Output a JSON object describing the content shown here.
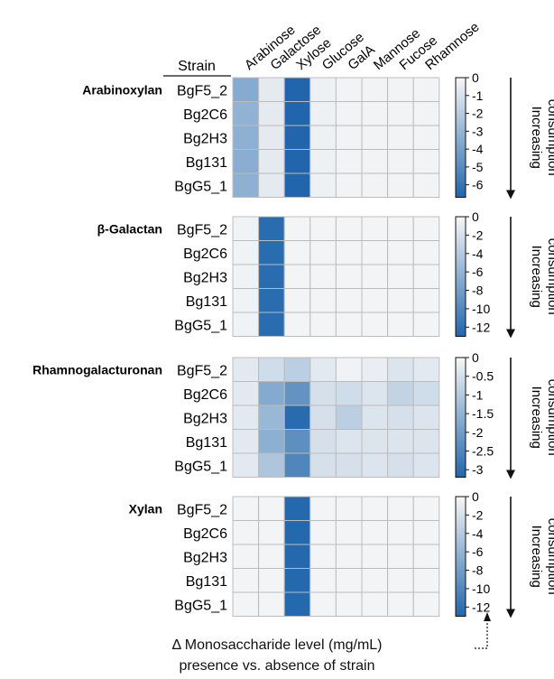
{
  "chart_data": {
    "type": "heatmap",
    "columns": [
      "Arabinose",
      "Galactose",
      "Xylose",
      "Glucose",
      "GalA",
      "Mannose",
      "Fucose",
      "Rhamnose"
    ],
    "row_header": "Strain",
    "rows": [
      "BgF5_2",
      "Bg2C6",
      "Bg2H3",
      "Bg131",
      "BgG5_1"
    ],
    "colors": {
      "low": "#2166ac",
      "high": "#f7f7f7",
      "cell_border": "#bcbcbc"
    },
    "colorbar_note": "Increasing consumption",
    "panels": [
      {
        "label": "Arabinoxylan",
        "cbar_ticks": [
          "0",
          "-1",
          "-2",
          "-3",
          "-4",
          "-5",
          "-6"
        ],
        "cbar_tick_values": [
          0,
          -1,
          -2,
          -3,
          -4,
          -5,
          -6
        ],
        "vmin": -6.7,
        "vmax": 0,
        "values": [
          [
            -3.5,
            -0.6,
            -6.7,
            -0.3,
            -0.2,
            -0.2,
            -0.2,
            -0.2
          ],
          [
            -3.2,
            -0.6,
            -6.7,
            -0.3,
            -0.2,
            -0.2,
            -0.2,
            -0.2
          ],
          [
            -3.3,
            -0.6,
            -6.7,
            -0.3,
            -0.2,
            -0.2,
            -0.2,
            -0.2
          ],
          [
            -3.4,
            -0.6,
            -6.7,
            -0.3,
            -0.2,
            -0.2,
            -0.2,
            -0.2
          ],
          [
            -3.3,
            -0.6,
            -6.7,
            -0.3,
            -0.2,
            -0.2,
            -0.2,
            -0.2
          ]
        ]
      },
      {
        "label": "β-Galactan",
        "cbar_ticks": [
          "0",
          "-2",
          "-4",
          "-6",
          "-8",
          "-10",
          "-12"
        ],
        "cbar_tick_values": [
          0,
          -2,
          -4,
          -6,
          -8,
          -10,
          -12
        ],
        "vmin": -13,
        "vmax": 0,
        "values": [
          [
            -0.4,
            -12.5,
            -0.3,
            -0.3,
            -0.3,
            -0.3,
            -0.3,
            -0.3
          ],
          [
            -0.4,
            -12.5,
            -0.3,
            -0.3,
            -0.3,
            -0.3,
            -0.3,
            -0.3
          ],
          [
            -0.4,
            -12.5,
            -0.3,
            -0.3,
            -0.3,
            -0.3,
            -0.3,
            -0.3
          ],
          [
            -0.4,
            -12.5,
            -0.3,
            -0.3,
            -0.3,
            -0.3,
            -0.3,
            -0.3
          ],
          [
            -0.4,
            -12.5,
            -0.3,
            -0.3,
            -0.3,
            -0.3,
            -0.3,
            -0.3
          ]
        ]
      },
      {
        "label": "Rhamnogalacturonan",
        "cbar_ticks": [
          "0",
          "-0.5",
          "-1",
          "-1.5",
          "-2",
          "-2.5",
          "-3"
        ],
        "cbar_tick_values": [
          0,
          -0.5,
          -1,
          -1.5,
          -2,
          -2.5,
          -3
        ],
        "vmin": -3.2,
        "vmax": 0,
        "values": [
          [
            -0.3,
            -0.6,
            -0.9,
            -0.3,
            -0.1,
            -0.2,
            -0.4,
            -0.3
          ],
          [
            -0.3,
            -1.7,
            -2.2,
            -0.5,
            -0.6,
            -0.4,
            -0.8,
            -0.6
          ],
          [
            -0.3,
            -1.4,
            -3.1,
            -0.5,
            -0.9,
            -0.4,
            -0.5,
            -0.4
          ],
          [
            -0.3,
            -1.6,
            -2.3,
            -0.5,
            -0.4,
            -0.4,
            -0.4,
            -0.4
          ],
          [
            -0.3,
            -1.1,
            -2.5,
            -0.5,
            -0.5,
            -0.4,
            -0.5,
            -0.4
          ]
        ]
      },
      {
        "label": "Xylan",
        "cbar_ticks": [
          "0",
          "-2",
          "-4",
          "-6",
          "-8",
          "-10",
          "-12"
        ],
        "cbar_tick_values": [
          0,
          -2,
          -4,
          -6,
          -8,
          -10,
          -12
        ],
        "vmin": -13,
        "vmax": 0,
        "values": [
          [
            -0.3,
            -0.3,
            -12.8,
            -0.3,
            -0.3,
            -0.3,
            -0.3,
            -0.3
          ],
          [
            -0.3,
            -0.3,
            -12.8,
            -0.3,
            -0.3,
            -0.3,
            -0.3,
            -0.3
          ],
          [
            -0.3,
            -0.3,
            -12.8,
            -0.3,
            -0.3,
            -0.3,
            -0.3,
            -0.3
          ],
          [
            -0.3,
            -0.3,
            -12.8,
            -0.3,
            -0.3,
            -0.3,
            -0.3,
            -0.3
          ],
          [
            -0.3,
            -0.3,
            -12.8,
            -0.3,
            -0.3,
            -0.3,
            -0.3,
            -0.3
          ]
        ]
      }
    ],
    "footer": {
      "line1": "Δ Monosaccharide level (mg/mL)",
      "line2": "presence vs. absence of strain"
    }
  }
}
